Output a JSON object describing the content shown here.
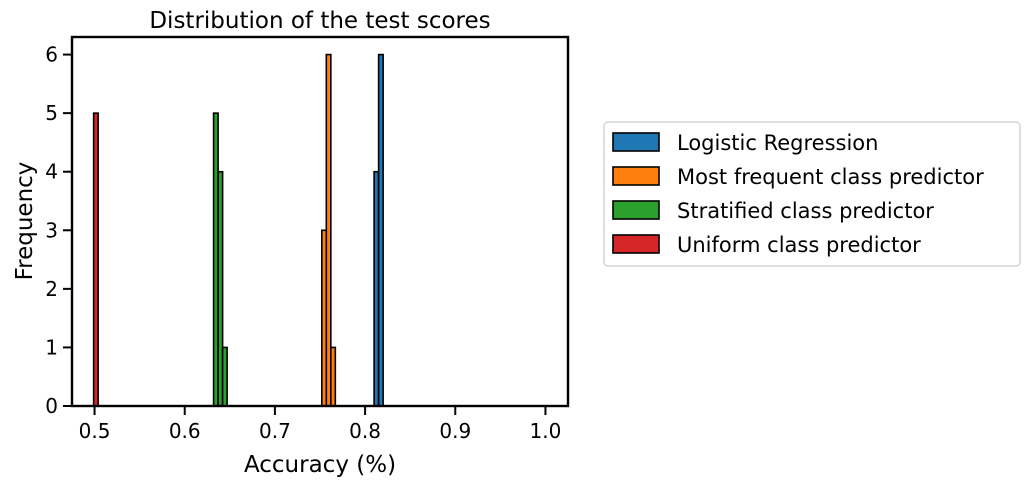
{
  "chart_data": {
    "type": "bar",
    "title": "Distribution of the test scores",
    "xlabel": "Accuracy (%)",
    "ylabel": "Frequency",
    "xlim": [
      0.475,
      1.025
    ],
    "ylim": [
      0,
      6.3
    ],
    "xticks": [
      "0.5",
      "0.6",
      "0.7",
      "0.8",
      "0.9",
      "1.0"
    ],
    "yticks": [
      "0",
      "1",
      "2",
      "3",
      "4",
      "5",
      "6"
    ],
    "grid": false,
    "legend_position": "outside-right",
    "series": [
      {
        "name": "Logistic Regression",
        "color": "#1f77b4",
        "bins": [
          {
            "x0": 0.81,
            "x1": 0.815,
            "count": 4
          },
          {
            "x0": 0.815,
            "x1": 0.82,
            "count": 6
          }
        ]
      },
      {
        "name": "Most frequent class predictor",
        "color": "#ff7f0e",
        "bins": [
          {
            "x0": 0.752,
            "x1": 0.757,
            "count": 3
          },
          {
            "x0": 0.757,
            "x1": 0.762,
            "count": 6
          },
          {
            "x0": 0.762,
            "x1": 0.767,
            "count": 1
          }
        ]
      },
      {
        "name": "Stratified class predictor",
        "color": "#2ca02c",
        "bins": [
          {
            "x0": 0.632,
            "x1": 0.637,
            "count": 5
          },
          {
            "x0": 0.637,
            "x1": 0.642,
            "count": 4
          },
          {
            "x0": 0.642,
            "x1": 0.647,
            "count": 1
          }
        ]
      },
      {
        "name": "Uniform class predictor",
        "color": "#d62728",
        "bins": [
          {
            "x0": 0.499,
            "x1": 0.504,
            "count": 5
          }
        ]
      }
    ]
  }
}
